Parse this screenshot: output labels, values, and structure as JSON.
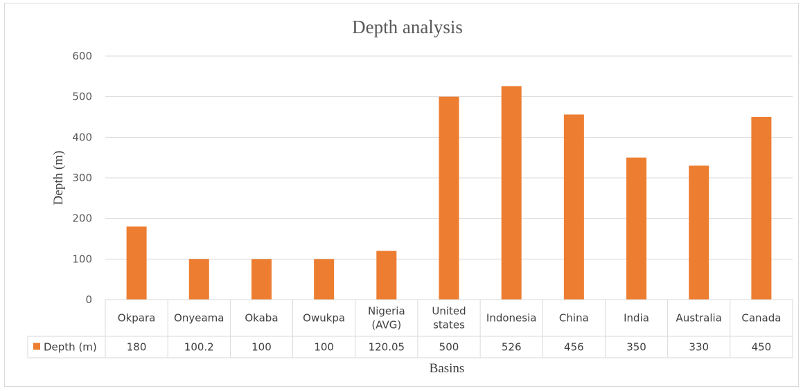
{
  "chart_data": {
    "type": "bar",
    "title": "Depth analysis",
    "xlabel": "Basins",
    "ylabel": "Depth (m)",
    "ylim": [
      0,
      600
    ],
    "yticks": [
      0,
      100,
      200,
      300,
      400,
      500,
      600
    ],
    "grid": true,
    "legend": "data-table",
    "categories": [
      [
        "Okpara"
      ],
      [
        "Onyeama"
      ],
      [
        "Okaba"
      ],
      [
        "Owukpa"
      ],
      [
        "Nigeria",
        "(AVG)"
      ],
      [
        "United",
        "states"
      ],
      [
        "Indonesia"
      ],
      [
        "China"
      ],
      [
        "India"
      ],
      [
        "Australia"
      ],
      [
        "Canada"
      ]
    ],
    "series": [
      {
        "name": "Depth (m)",
        "color": "#ed7d31",
        "values": [
          180,
          100.2,
          100,
          100,
          120.05,
          500,
          526,
          456,
          350,
          330,
          450
        ],
        "labels": [
          "180",
          "100.2",
          "100",
          "100",
          "120.05",
          "500",
          "526",
          "456",
          "350",
          "330",
          "450"
        ]
      }
    ]
  }
}
